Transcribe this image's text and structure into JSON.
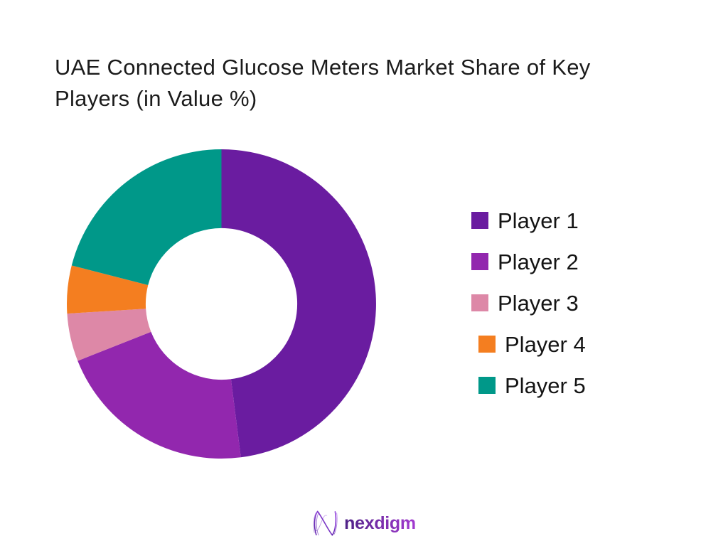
{
  "title": {
    "line1": "UAE Connected Glucose Meters Market Share of Key",
    "line2": "Players (in Value %)"
  },
  "chart_data": {
    "type": "pie",
    "subtype": "donut",
    "title": "UAE Connected Glucose Meters Market Share of Key Players (in Value %)",
    "categories": [
      "Player 1",
      "Player 2",
      "Player 3",
      "Player 4",
      "Player 5"
    ],
    "values": [
      48,
      21,
      5,
      5,
      21
    ],
    "unit": "% of value",
    "colors": [
      "#6A1CA0",
      "#9227AE",
      "#DD88A7",
      "#F47E20",
      "#009889"
    ],
    "start_angle_deg": 0,
    "direction": "clockwise",
    "inner_radius_ratio": 0.49,
    "legend_position": "right",
    "data_labels": false,
    "hole_color": "#FFFFFF"
  },
  "footer": {
    "brand": "nexdigm"
  }
}
